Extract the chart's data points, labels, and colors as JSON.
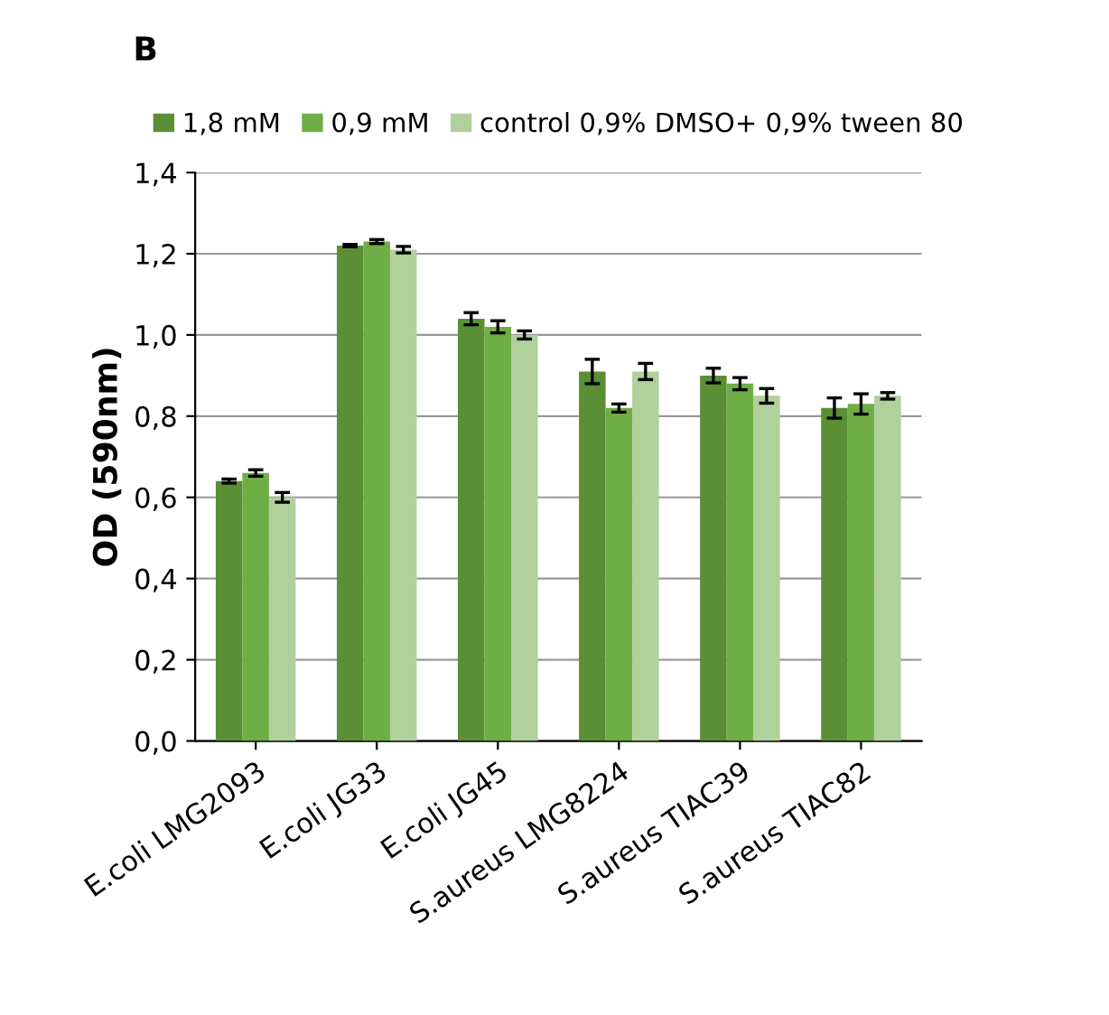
{
  "chart_data": {
    "type": "bar",
    "title": "B",
    "ylabel": "OD (590nm)",
    "categories": [
      "E.coli LMG2093",
      "E.coli JG33",
      "E.coli JG45",
      "S.aureus LMG8224",
      "S.aureus TIAC39",
      "S.aureus TIAC82"
    ],
    "series": [
      {
        "name": "1,8 mM",
        "color": "#5a8f35",
        "values": [
          0.64,
          1.22,
          1.04,
          0.91,
          0.9,
          0.82
        ],
        "errors": [
          0.005,
          0.003,
          0.015,
          0.03,
          0.018,
          0.025
        ]
      },
      {
        "name": "0,9 mM",
        "color": "#6fae45",
        "values": [
          0.66,
          1.23,
          1.02,
          0.82,
          0.88,
          0.83
        ],
        "errors": [
          0.008,
          0.005,
          0.015,
          0.01,
          0.015,
          0.025
        ]
      },
      {
        "name": "control 0,9% DMSO+ 0,9% tween 80",
        "color": "#b0d09c",
        "values": [
          0.6,
          1.21,
          1.0,
          0.91,
          0.85,
          0.85
        ],
        "errors": [
          0.012,
          0.008,
          0.01,
          0.02,
          0.018,
          0.008
        ]
      }
    ],
    "ylim": [
      0,
      1.4
    ],
    "yticks": [
      {
        "value": 0,
        "label": "0,0"
      },
      {
        "value": 0.2,
        "label": "0,2"
      },
      {
        "value": 0.4,
        "label": "0,4"
      },
      {
        "value": 0.6,
        "label": "0,6"
      },
      {
        "value": 0.8,
        "label": "0,8"
      },
      {
        "value": 1.0,
        "label": "1,0"
      },
      {
        "value": 1.2,
        "label": "1,2"
      },
      {
        "value": 1.4,
        "label": "1,4"
      }
    ],
    "grid": "y",
    "legend": "top"
  }
}
